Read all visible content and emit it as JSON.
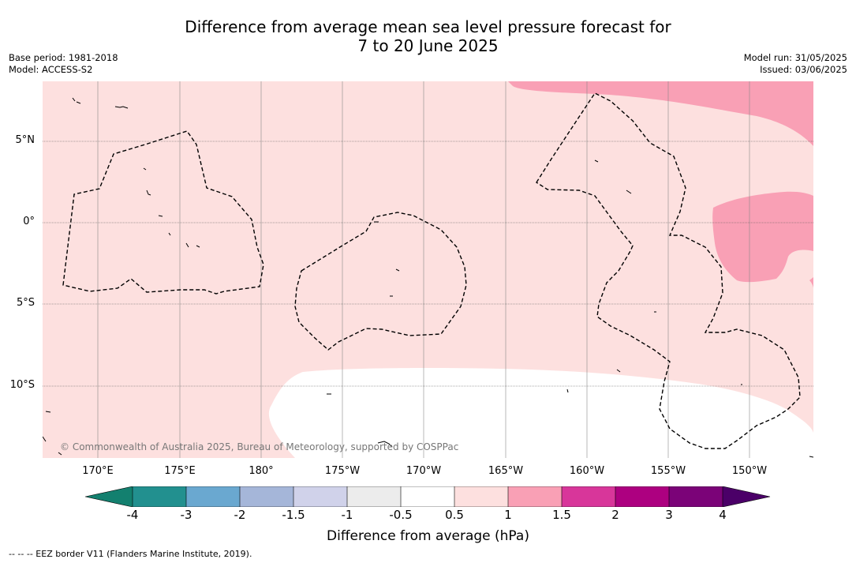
{
  "title": {
    "line1": "Difference from average mean sea level pressure forecast for",
    "line2": "7 to 20 June 2025"
  },
  "meta": {
    "base_period": "Base period: 1981-2018",
    "model": "Model: ACCESS-S2",
    "model_run": "Model run: 31/05/2025",
    "issued": "Issued: 03/06/2025"
  },
  "map": {
    "latitude_labels": [
      "5°N",
      "0°",
      "5°S",
      "10°S"
    ],
    "longitude_labels": [
      "170°E",
      "175°E",
      "180°",
      "175°W",
      "170°W",
      "165°W",
      "160°W",
      "155°W",
      "150°W"
    ],
    "copyright": "© Commonwealth of Australia 2025, Bureau of Meteorology, supported by COSPPac"
  },
  "colorbar": {
    "tick_labels": [
      "-4",
      "-3",
      "-2",
      "-1.5",
      "-1",
      "-0.5",
      "0.5",
      "1",
      "1.5",
      "2",
      "3",
      "4"
    ],
    "colors": [
      "#13806f",
      "#22908f",
      "#6aa8d0",
      "#a5b6d9",
      "#d0d2ea",
      "#ececec",
      "#ffffff",
      "#fde0df",
      "#f9a0b5",
      "#d8369a",
      "#ad0080",
      "#7b0378",
      "#4b0068"
    ],
    "label": "Difference from average (hPa)"
  },
  "footnote": "--  --  -- EEZ border V11 (Flanders Marine Institute, 2019)."
}
